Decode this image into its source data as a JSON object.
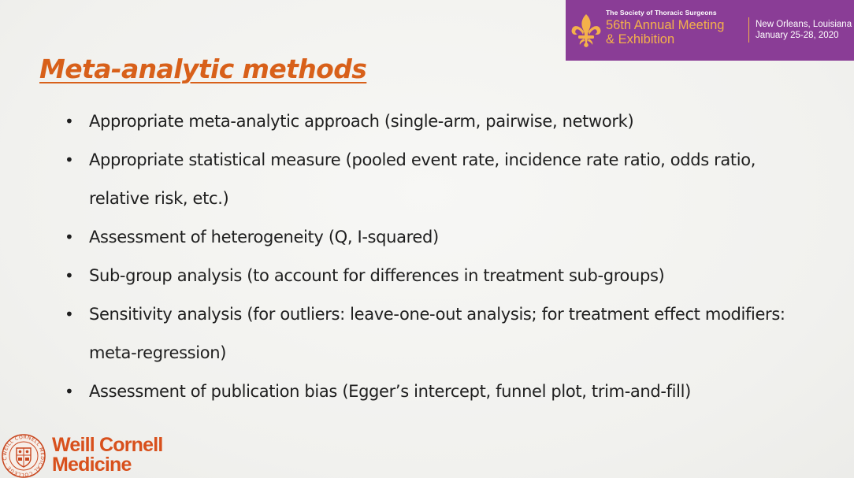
{
  "banner": {
    "society": "The Society of Thoracic Surgeons",
    "meeting_line1": "56th Annual Meeting",
    "meeting_line2": "& Exhibition",
    "location_line1": "New Orleans, Louisiana",
    "location_line2": "January 25-28, 2020",
    "icon": "fleur-de-lis-icon",
    "background_color": "#8a3d96",
    "accent_color": "#f4b14a"
  },
  "slide": {
    "title": "Meta-analytic methods",
    "title_color": "#d8601a",
    "bullets": [
      "Appropriate meta-analytic approach (single-arm, pairwise, network)",
      "Appropriate statistical measure (pooled event rate, incidence rate ratio, odds ratio, relative risk, etc.)",
      "Assessment of heterogeneity (Q, I-squared)",
      "Sub-group analysis (to account for differences in treatment sub-groups)",
      "Sensitivity analysis (for outliers: leave-one-out analysis;  for treatment effect modifiers: meta-regression)",
      "Assessment of publication bias (Egger’s intercept, funnel plot, trim-and-fill)"
    ]
  },
  "logo": {
    "line1": "Weill Cornell",
    "line2": "Medicine",
    "seal_text": "WEILL CORNELL MEDICAL COLLEGE · CORNELL UNIVERSITY",
    "color": "#d8501c"
  }
}
